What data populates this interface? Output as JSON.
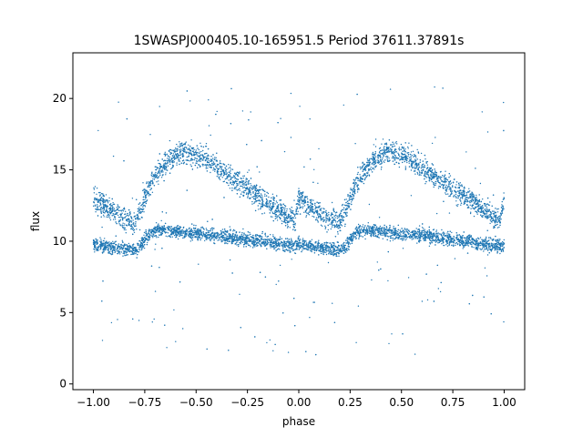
{
  "chart_data": {
    "type": "scatter",
    "title": "1SWASPJ000405.10-165951.5 Period 37611.37891s",
    "xlabel": "phase",
    "ylabel": "flux",
    "xlim": [
      -1.1,
      1.1
    ],
    "ylim": [
      -0.4,
      23.2
    ],
    "xticks": [
      -1.0,
      -0.75,
      -0.5,
      -0.25,
      0.0,
      0.25,
      0.5,
      0.75,
      1.0
    ],
    "xtick_labels": [
      "−1.00",
      "−0.75",
      "−0.50",
      "−0.25",
      "0.00",
      "0.25",
      "0.50",
      "0.75",
      "1.00"
    ],
    "yticks": [
      0,
      5,
      10,
      15,
      20
    ],
    "ytick_labels": [
      "0",
      "5",
      "10",
      "15",
      "20"
    ],
    "grid": false,
    "marker_color": "#1f77b4",
    "series": [
      {
        "description_points": "phase-folded light curve, mirrored over two cycles",
        "x": [
          -1.0,
          -0.98,
          -0.96,
          -0.94,
          -0.92,
          -0.9,
          -0.88,
          -0.86,
          -0.84,
          -0.82,
          -0.8,
          -0.78,
          -0.76,
          -0.74,
          -0.72,
          -0.7,
          -0.68,
          -0.66,
          -0.64,
          -0.62,
          -0.6,
          -0.58,
          -0.56,
          -0.54,
          -0.52,
          -0.5,
          -0.48,
          -0.46,
          -0.44,
          -0.42,
          -0.4,
          -0.38,
          -0.36,
          -0.34,
          -0.32,
          -0.3,
          -0.28,
          -0.26,
          -0.24,
          -0.22,
          -0.2,
          -0.18,
          -0.16,
          -0.14,
          -0.12,
          -0.1,
          -0.08,
          -0.06,
          -0.04,
          -0.02,
          0.0,
          0.02,
          0.04,
          0.06,
          0.08,
          0.1,
          0.12,
          0.14,
          0.16,
          0.18,
          0.2,
          0.22,
          0.24,
          0.26,
          0.28,
          0.3,
          0.32,
          0.34,
          0.36,
          0.38,
          0.4,
          0.42,
          0.44,
          0.46,
          0.48,
          0.5,
          0.52,
          0.54,
          0.56,
          0.58,
          0.6,
          0.62,
          0.64,
          0.66,
          0.68,
          0.7,
          0.72,
          0.74,
          0.76,
          0.78,
          0.8,
          0.82,
          0.84,
          0.86,
          0.88,
          0.9,
          0.92,
          0.94,
          0.96,
          0.98,
          1.0
        ],
        "upper_branch": [
          13.0,
          12.8,
          12.6,
          12.4,
          12.2,
          12.0,
          11.8,
          11.6,
          11.5,
          11.4,
          11.3,
          11.9,
          12.6,
          13.3,
          14.0,
          14.6,
          15.0,
          15.3,
          15.6,
          15.8,
          16.0,
          16.2,
          16.3,
          16.2,
          16.1,
          16.0,
          15.9,
          15.8,
          15.6,
          15.4,
          15.2,
          15.0,
          14.8,
          14.6,
          14.4,
          14.2,
          14.0,
          13.8,
          13.6,
          13.4,
          13.2,
          13.0,
          12.8,
          12.6,
          12.4,
          12.2,
          12.0,
          11.8,
          11.6,
          11.5,
          13.0,
          12.8,
          12.6,
          12.4,
          12.2,
          12.0,
          11.8,
          11.6,
          11.5,
          11.4,
          11.3,
          11.9,
          12.6,
          13.3,
          14.0,
          14.6,
          15.0,
          15.3,
          15.6,
          15.8,
          16.0,
          16.2,
          16.3,
          16.2,
          16.1,
          16.0,
          15.9,
          15.8,
          15.6,
          15.4,
          15.2,
          15.0,
          14.8,
          14.6,
          14.4,
          14.2,
          14.0,
          13.8,
          13.6,
          13.4,
          13.2,
          13.0,
          12.8,
          12.6,
          12.4,
          12.2,
          12.0,
          11.8,
          11.6,
          11.5,
          13.0
        ],
        "lower_branch": [
          9.8,
          9.75,
          9.7,
          9.65,
          9.6,
          9.55,
          9.5,
          9.5,
          9.45,
          9.45,
          9.4,
          9.5,
          9.9,
          10.3,
          10.6,
          10.75,
          10.8,
          10.8,
          10.75,
          10.7,
          10.7,
          10.65,
          10.6,
          10.6,
          10.55,
          10.5,
          10.5,
          10.45,
          10.45,
          10.4,
          10.4,
          10.35,
          10.3,
          10.3,
          10.25,
          10.2,
          10.2,
          10.15,
          10.1,
          10.1,
          10.05,
          10.0,
          10.0,
          9.9,
          9.85,
          9.8,
          9.75,
          9.7,
          9.7,
          9.65,
          9.8,
          9.75,
          9.7,
          9.65,
          9.6,
          9.55,
          9.5,
          9.5,
          9.45,
          9.45,
          9.4,
          9.5,
          9.9,
          10.3,
          10.6,
          10.75,
          10.8,
          10.8,
          10.75,
          10.7,
          10.7,
          10.65,
          10.6,
          10.6,
          10.55,
          10.5,
          10.5,
          10.45,
          10.45,
          10.4,
          10.4,
          10.35,
          10.3,
          10.3,
          10.25,
          10.2,
          10.2,
          10.15,
          10.1,
          10.1,
          10.05,
          10.0,
          10.0,
          9.9,
          9.85,
          9.8,
          9.75,
          9.7,
          9.7,
          9.65,
          9.8
        ]
      }
    ]
  }
}
